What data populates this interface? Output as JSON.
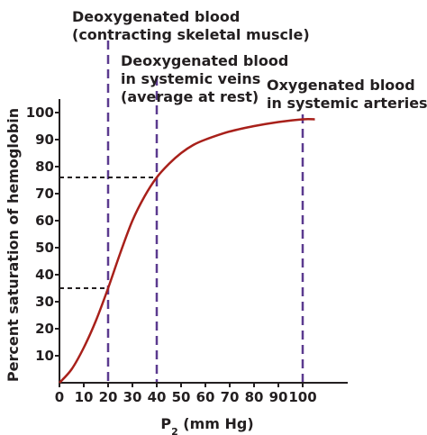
{
  "chart_data": {
    "type": "line",
    "xlabel_main": "P",
    "xlabel_sub": "2",
    "xlabel_unit": " (mm Hg)",
    "ylabel": "Percent saturation of hemoglobin",
    "xlim": [
      0,
      110
    ],
    "ylim": [
      0,
      100
    ],
    "x_ticks": [
      0,
      10,
      20,
      30,
      40,
      50,
      60,
      70,
      80,
      90,
      100
    ],
    "y_ticks": [
      10,
      20,
      30,
      40,
      50,
      60,
      70,
      80,
      90,
      100
    ],
    "grid": false,
    "curve_color": "#a8201a",
    "marker_color": "#5b3a8f",
    "series": [
      {
        "x": [
          0,
          5,
          10,
          15,
          20,
          25,
          30,
          35,
          40,
          45,
          50,
          55,
          60,
          70,
          80,
          90,
          100,
          105
        ],
        "y": [
          0,
          5,
          13,
          23,
          35,
          48,
          60,
          69,
          76,
          81,
          85,
          88,
          90,
          93,
          95,
          96.5,
          97.5,
          97.5
        ]
      }
    ],
    "markers": [
      {
        "x": 20,
        "y": 35,
        "label_lines": [
          "Deoxygenated blood",
          "(contracting skeletal muscle)"
        ]
      },
      {
        "x": 40,
        "y": 76,
        "label_lines": [
          "Deoxygenated blood",
          "in systemic veins",
          "(average at rest)"
        ]
      },
      {
        "x": 100,
        "y": 97.5,
        "label_lines": [
          "Oxygenated blood",
          "in systemic arteries"
        ]
      }
    ]
  }
}
